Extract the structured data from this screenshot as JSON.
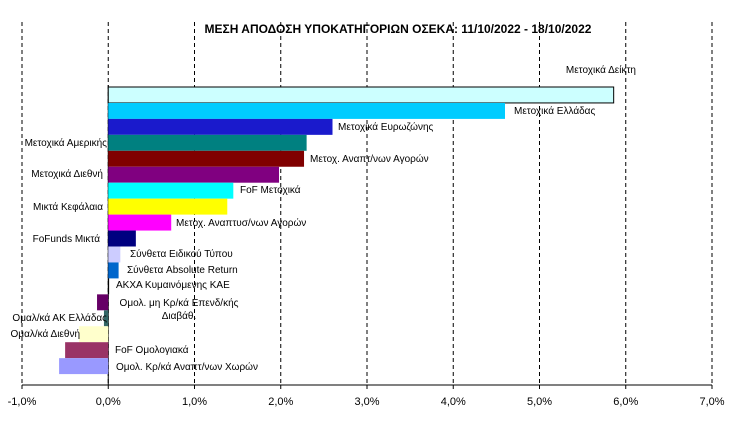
{
  "chart_data": {
    "type": "bar",
    "orientation": "horizontal",
    "title": "ΜΕΣΗ ΑΠΟΔΟΣΗ ΥΠΟΚΑΤΗΓΟΡΙΩΝ  ΟΣΕΚΑ: 11/10/2022 - 18/10/2022",
    "categories": [
      "Μετοχικά Δείκτη",
      "Μετοχικά Ελλάδας",
      "Μετοχικά Ευρωζώνης",
      "Μετοχικά Αμερικής",
      "Μετοχ. Αναπτ/νων Αγορών",
      "Μετοχικά Διεθνή",
      "FoF Μετοχικά",
      "Μικτά Κεφάλαια",
      "Μετοχ. Αναπτυσ/νων Αγορών",
      "FoFunds Μικτά",
      "Σύνθετα Ειδικού Τύπου",
      "Σύνθετα Absolute Return",
      "ΑΚΧΑ Κυμαινόμενης ΚΑΕ",
      "Ομολ. μη Κρ/κά Επενδ/κής Διαβάθ.",
      "Ομαλ/κά ΑΚ Ελλάδας",
      "Ομαλ/κά Διεθνή",
      "FoF Ομολογιακά",
      "Ομολ. Κρ/κά Αναπτ/νων Χωρών"
    ],
    "values": [
      5.86,
      4.6,
      2.6,
      2.3,
      2.27,
      1.98,
      1.45,
      1.38,
      0.73,
      0.32,
      0.14,
      0.12,
      0.01,
      -0.13,
      -0.05,
      -0.34,
      -0.5,
      -0.57
    ],
    "colors": [
      "#ccffff",
      "#00ccff",
      "#1a1acc",
      "#008080",
      "#800000",
      "#800080",
      "#00ffff",
      "#ffff00",
      "#ff00ff",
      "#000080",
      "#ccccff",
      "#0066cc",
      "#000000",
      "#660066",
      "#336666",
      "#ffffcc",
      "#993366",
      "#9999ff"
    ],
    "xlim": [
      -1,
      7
    ],
    "xticks": [
      {
        "value": -1,
        "label": "-1,0%"
      },
      {
        "value": 0,
        "label": "0,0%"
      },
      {
        "value": 1,
        "label": "1,0%"
      },
      {
        "value": 2,
        "label": "2,0%"
      },
      {
        "value": 3,
        "label": "3,0%"
      },
      {
        "value": 4,
        "label": "4,0%"
      },
      {
        "value": 5,
        "label": "5,0%"
      },
      {
        "value": 6,
        "label": "6,0%"
      },
      {
        "value": 7,
        "label": "7,0%"
      }
    ],
    "grid": true
  }
}
